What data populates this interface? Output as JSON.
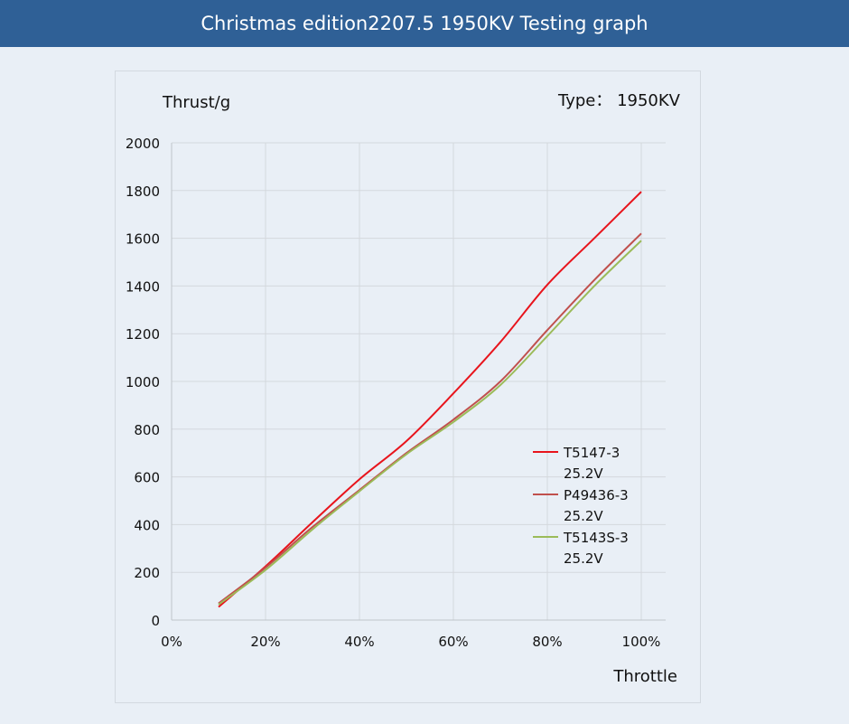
{
  "header": {
    "title": "Christmas edition2207.5 1950KV Testing graph"
  },
  "chart_data": {
    "type": "line",
    "ylabel": "Thrust/g",
    "xlabel": "Throttle",
    "type_label": "Type： 1950KV",
    "xlim": [
      0,
      100
    ],
    "ylim": [
      0,
      2000
    ],
    "x_ticks": [
      0,
      20,
      40,
      60,
      80,
      100
    ],
    "x_tick_labels": [
      "0%",
      "20%",
      "40%",
      "60%",
      "80%",
      "100%"
    ],
    "y_ticks": [
      0,
      200,
      400,
      600,
      800,
      1000,
      1200,
      1400,
      1600,
      1800,
      2000
    ],
    "y_tick_labels": [
      "0",
      "200",
      "400",
      "600",
      "800",
      "1000",
      "1200",
      "1400",
      "1600",
      "1800",
      "2000"
    ],
    "grid": true,
    "legend_position": "right",
    "x": [
      10,
      20,
      30,
      40,
      50,
      60,
      70,
      80,
      90,
      100
    ],
    "series": [
      {
        "name": "T5147-3 25.2V",
        "name_lines": [
          "T5147-3",
          "25.2V"
        ],
        "color": "#e8141c",
        "values": [
          55,
          225,
          410,
          590,
          750,
          950,
          1165,
          1405,
          1600,
          1795
        ]
      },
      {
        "name": "P49436-3 25.2V",
        "name_lines": [
          "P49436-3",
          "25.2V"
        ],
        "color": "#c0504d",
        "values": [
          70,
          220,
          390,
          545,
          700,
          840,
          1000,
          1215,
          1425,
          1620
        ]
      },
      {
        "name": "T5143S-3 25.2V",
        "name_lines": [
          "T5143S-3",
          "25.2V"
        ],
        "color": "#9bbb59",
        "values": [
          65,
          210,
          380,
          540,
          695,
          830,
          985,
          1190,
          1400,
          1590
        ]
      }
    ]
  }
}
